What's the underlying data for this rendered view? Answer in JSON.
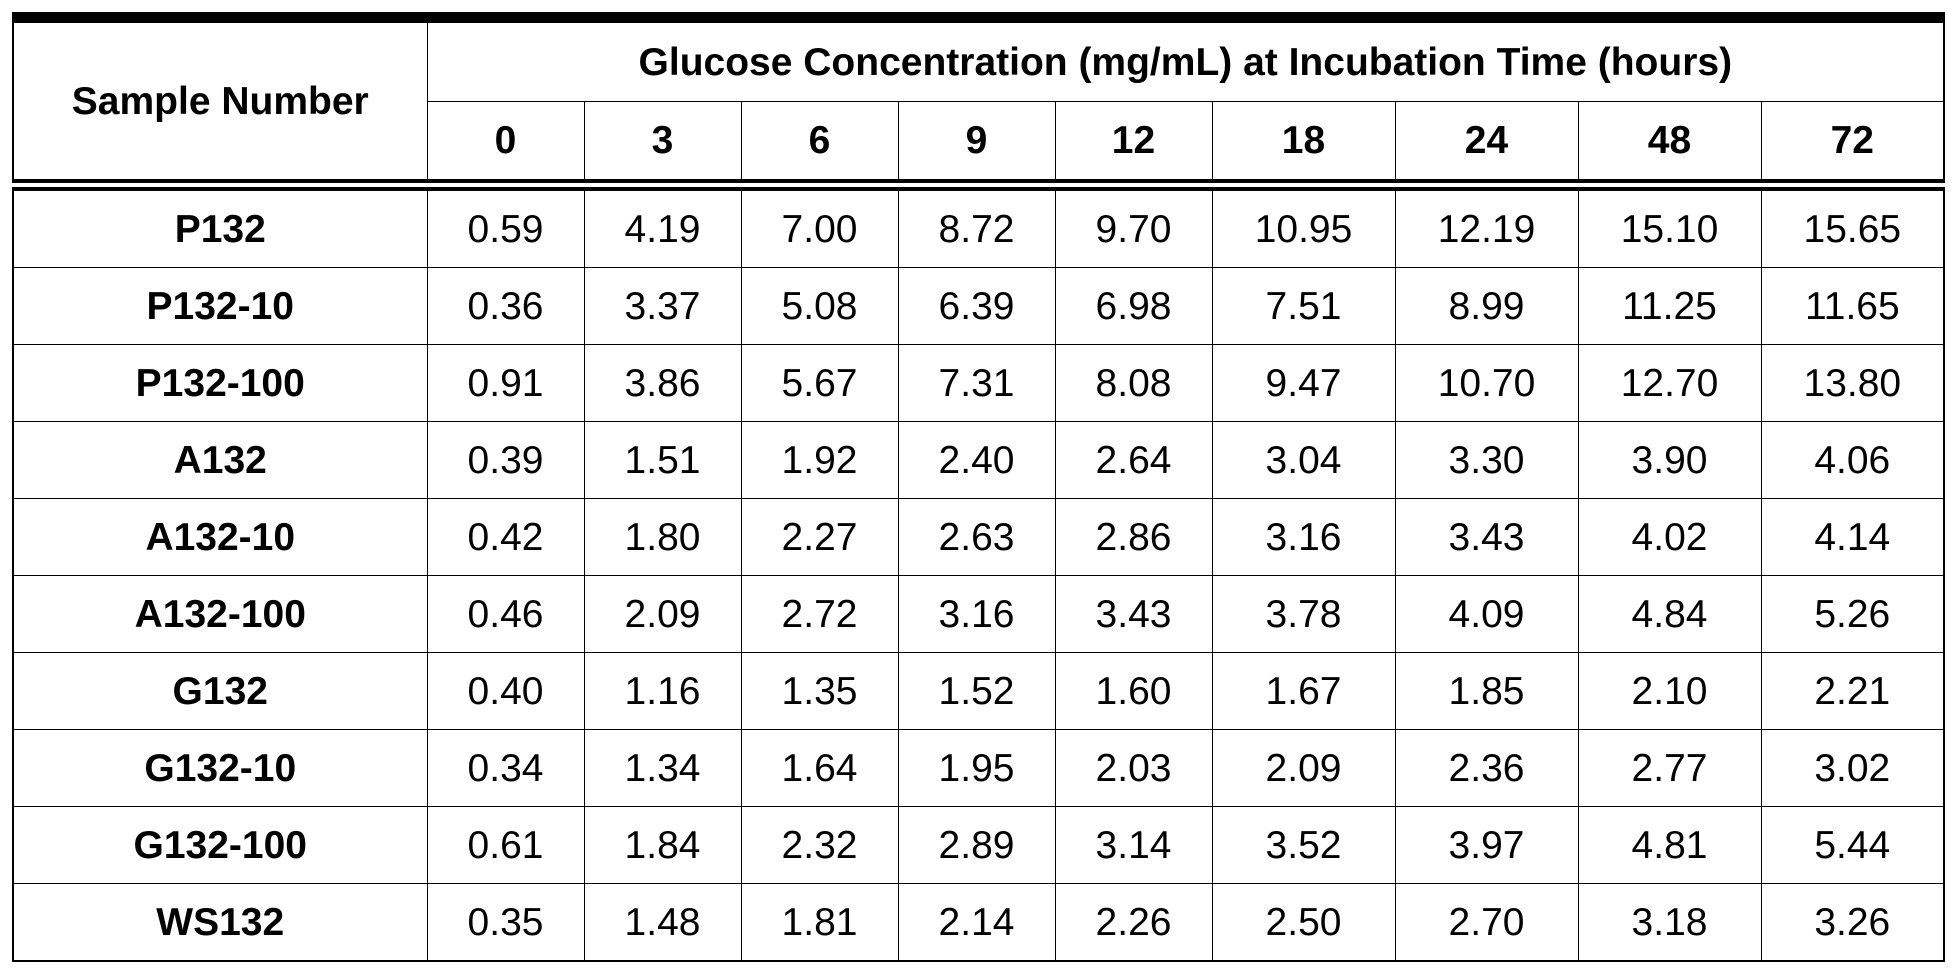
{
  "table": {
    "sample_header": "Sample Number",
    "group_header": "Glucose Concentration (mg/mL) at Incubation Time (hours)",
    "hours": [
      "0",
      "3",
      "6",
      "9",
      "12",
      "18",
      "24",
      "48",
      "72"
    ],
    "rows": [
      {
        "sample": "P132",
        "values": [
          "0.59",
          "4.19",
          "7.00",
          "8.72",
          "9.70",
          "10.95",
          "12.19",
          "15.10",
          "15.65"
        ]
      },
      {
        "sample": "P132-10",
        "values": [
          "0.36",
          "3.37",
          "5.08",
          "6.39",
          "6.98",
          "7.51",
          "8.99",
          "11.25",
          "11.65"
        ]
      },
      {
        "sample": "P132-100",
        "values": [
          "0.91",
          "3.86",
          "5.67",
          "7.31",
          "8.08",
          "9.47",
          "10.70",
          "12.70",
          "13.80"
        ]
      },
      {
        "sample": "A132",
        "values": [
          "0.39",
          "1.51",
          "1.92",
          "2.40",
          "2.64",
          "3.04",
          "3.30",
          "3.90",
          "4.06"
        ]
      },
      {
        "sample": "A132-10",
        "values": [
          "0.42",
          "1.80",
          "2.27",
          "2.63",
          "2.86",
          "3.16",
          "3.43",
          "4.02",
          "4.14"
        ]
      },
      {
        "sample": "A132-100",
        "values": [
          "0.46",
          "2.09",
          "2.72",
          "3.16",
          "3.43",
          "3.78",
          "4.09",
          "4.84",
          "5.26"
        ]
      },
      {
        "sample": "G132",
        "values": [
          "0.40",
          "1.16",
          "1.35",
          "1.52",
          "1.60",
          "1.67",
          "1.85",
          "2.10",
          "2.21"
        ]
      },
      {
        "sample": "G132-10",
        "values": [
          "0.34",
          "1.34",
          "1.64",
          "1.95",
          "2.03",
          "2.09",
          "2.36",
          "2.77",
          "3.02"
        ]
      },
      {
        "sample": "G132-100",
        "values": [
          "0.61",
          "1.84",
          "2.32",
          "2.89",
          "3.14",
          "3.52",
          "3.97",
          "4.81",
          "5.44"
        ]
      },
      {
        "sample": "WS132",
        "values": [
          "0.35",
          "1.48",
          "1.81",
          "2.14",
          "2.26",
          "2.50",
          "2.70",
          "3.18",
          "3.26"
        ]
      }
    ]
  }
}
